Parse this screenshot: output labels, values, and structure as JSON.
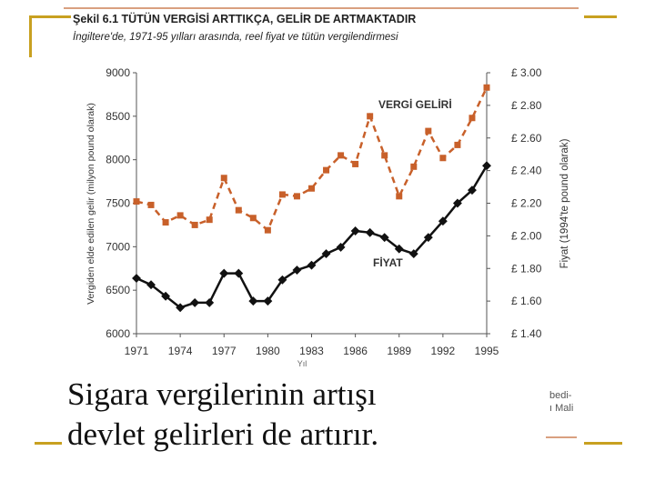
{
  "figure": {
    "title": "Şekil 6.1 TÜTÜN VERGİSİ ARTTIKÇA, GELİR DE ARTMAKTADIR",
    "subtitle": "İngiltere'de, 1971-95 yılları arasında, reel fiyat ve tütün vergilendirmesi"
  },
  "caption": {
    "line1": "Sigara vergilerinin artışı",
    "line2": "devlet gelirleri de artırır."
  },
  "side_fragment": {
    "line1": "bedi-",
    "line2": "ı Mali"
  },
  "colors": {
    "decor": "#c8a020",
    "tax_series": "#c8602a",
    "price_series": "#111111",
    "axis": "#555555"
  },
  "chart_data": {
    "type": "line",
    "ylabel": "Vergiden elde edilen gelir (milyon pound olarak)",
    "y2label": "Fiyat (1994'te pound olarak)",
    "xlabel_fragment": "Yıl",
    "xlim": [
      1971,
      1995
    ],
    "ylim": [
      6000,
      9000
    ],
    "y2lim": [
      1.4,
      3.0
    ],
    "x_ticks": [
      "1971",
      "1974",
      "1977",
      "1980",
      "1983",
      "1986",
      "1989",
      "1992",
      "1995"
    ],
    "y_ticks": [
      "6000",
      "6500",
      "7000",
      "7500",
      "8000",
      "8500",
      "9000"
    ],
    "y2_ticks": [
      "£ 1.40",
      "£ 1.60",
      "£ 1.80",
      "£ 2.00",
      "£ 2.20",
      "£ 2.40",
      "£ 2.60",
      "£ 2.80",
      "£ 3.00"
    ],
    "grid": false,
    "series": [
      {
        "name": "VERGİ GELİRİ",
        "axis": "left",
        "style": "dashed",
        "x": [
          1971,
          1972,
          1973,
          1974,
          1975,
          1976,
          1977,
          1978,
          1979,
          1980,
          1981,
          1982,
          1983,
          1984,
          1985,
          1986,
          1987,
          1988,
          1989,
          1990,
          1991,
          1992,
          1993,
          1994,
          1995
        ],
        "y": [
          7520,
          7480,
          7280,
          7360,
          7250,
          7310,
          7790,
          7420,
          7330,
          7190,
          7600,
          7580,
          7670,
          7880,
          8050,
          7950,
          8500,
          8050,
          7580,
          7920,
          8330,
          8020,
          8170,
          8480,
          8830
        ]
      },
      {
        "name": "FİYAT",
        "axis": "right",
        "style": "solid",
        "x": [
          1971,
          1972,
          1973,
          1974,
          1975,
          1976,
          1977,
          1978,
          1979,
          1980,
          1981,
          1982,
          1983,
          1984,
          1985,
          1986,
          1987,
          1988,
          1989,
          1990,
          1991,
          1992,
          1993,
          1994,
          1995
        ],
        "y": [
          1.74,
          1.7,
          1.63,
          1.56,
          1.59,
          1.59,
          1.77,
          1.77,
          1.6,
          1.6,
          1.73,
          1.79,
          1.82,
          1.89,
          1.93,
          2.03,
          2.02,
          1.99,
          1.92,
          1.89,
          1.99,
          2.09,
          2.2,
          2.28,
          2.43
        ]
      }
    ]
  }
}
